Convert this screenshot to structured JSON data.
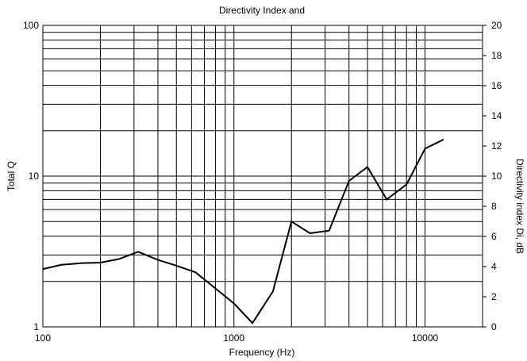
{
  "chart_data": {
    "type": "line",
    "title": "Directivity Index and",
    "xlabel": "Frequency (Hz)",
    "ylabel_left": "Total Q",
    "ylabel_right": "Directivity index Di, dB",
    "x_scale": "log",
    "y_left_scale": "log",
    "xlim": [
      100,
      20000
    ],
    "ylim_left": [
      1,
      100
    ],
    "ylim_right": [
      0,
      20
    ],
    "grid": true,
    "legend": "none",
    "x_ticks": [
      {
        "value": 100,
        "label": "100"
      },
      {
        "value": 1000,
        "label": "1000"
      },
      {
        "value": 10000,
        "label": "10000"
      }
    ],
    "y_left_ticks": [
      {
        "value": 1,
        "label": "1"
      },
      {
        "value": 10,
        "label": "10"
      },
      {
        "value": 100,
        "label": "100"
      }
    ],
    "y_right_ticks": [
      {
        "value": 0,
        "label": "0"
      },
      {
        "value": 2,
        "label": "2"
      },
      {
        "value": 4,
        "label": "4"
      },
      {
        "value": 6,
        "label": "6"
      },
      {
        "value": 8,
        "label": "8"
      },
      {
        "value": 10,
        "label": "10"
      },
      {
        "value": 12,
        "label": "12"
      },
      {
        "value": 14,
        "label": "14"
      },
      {
        "value": 16,
        "label": "16"
      },
      {
        "value": 18,
        "label": "18"
      },
      {
        "value": 20,
        "label": "20"
      }
    ],
    "series": [
      {
        "color": "#000000",
        "x": [
          100,
          125,
          160,
          200,
          250,
          315,
          400,
          500,
          630,
          800,
          1000,
          1250,
          1600,
          2000,
          2500,
          3150,
          4000,
          5000,
          6300,
          8000,
          10000,
          12500
        ],
        "y": [
          2.42,
          2.58,
          2.65,
          2.67,
          2.82,
          3.15,
          2.78,
          2.55,
          2.3,
          1.8,
          1.43,
          1.06,
          1.72,
          5.0,
          4.18,
          4.35,
          9.3,
          11.5,
          7.0,
          8.8,
          15.2,
          17.5
        ]
      }
    ]
  }
}
